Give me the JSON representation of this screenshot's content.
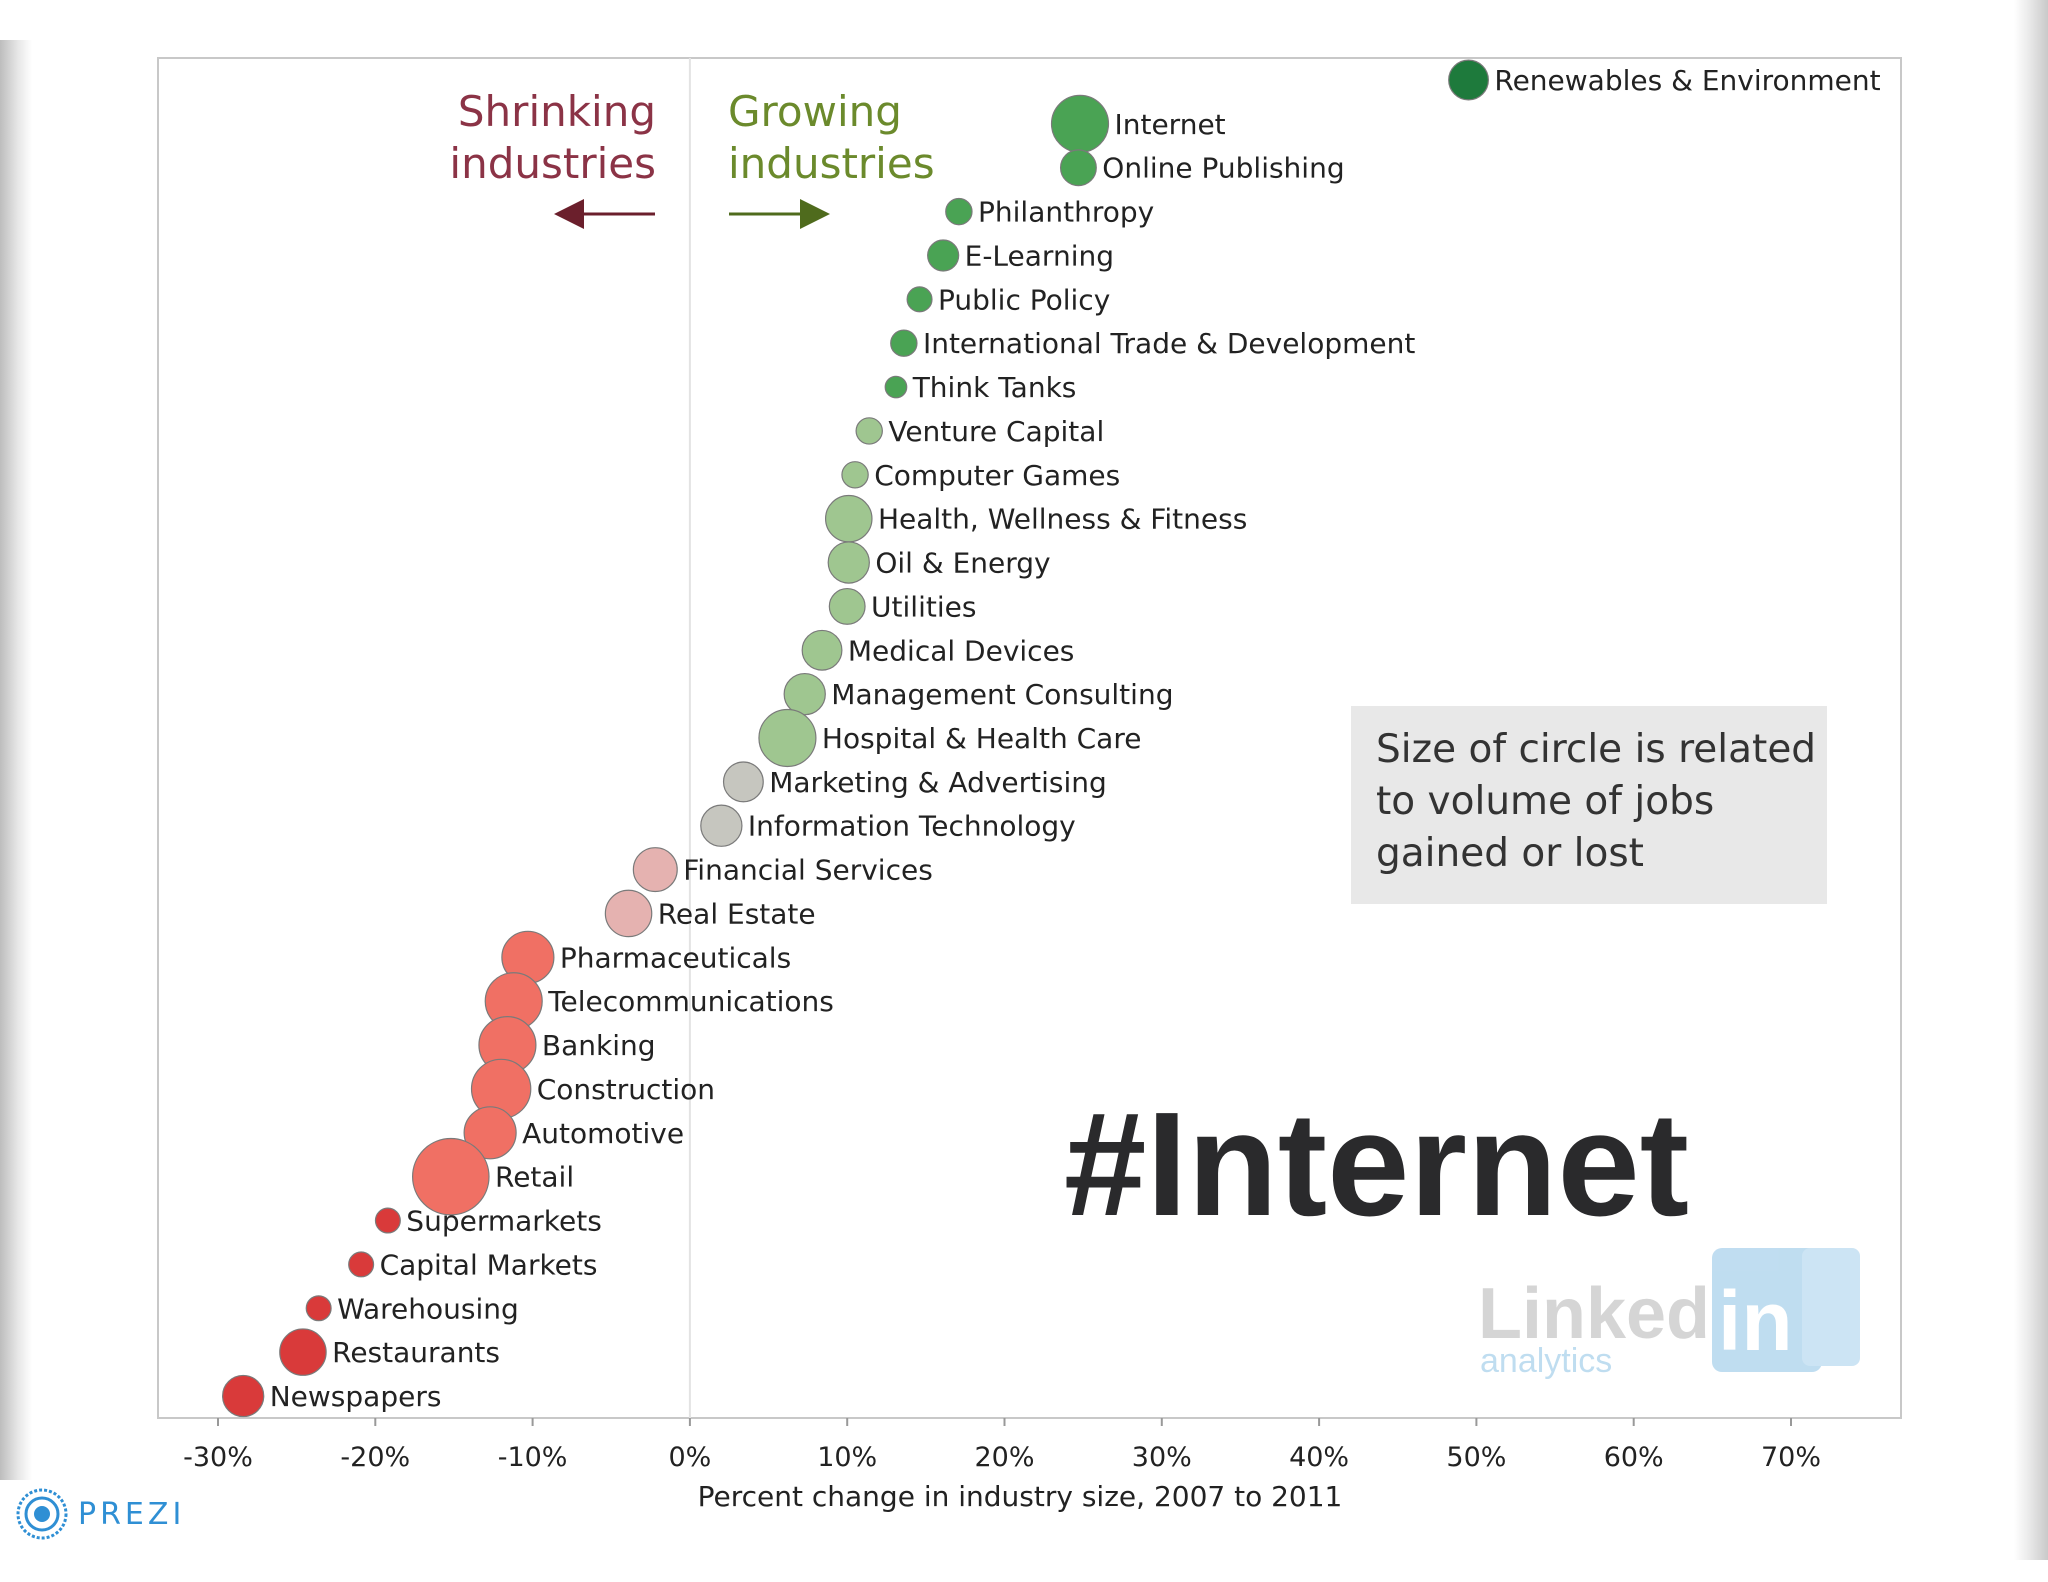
{
  "branding": {
    "prezi_label": "PREZI",
    "linkedin_word": "Linked",
    "linkedin_in": "in",
    "linkedin_sub": "analytics"
  },
  "overlay": {
    "hashtag": "#Internet"
  },
  "legend_box": {
    "lines": [
      "Size of circle is related",
      "to volume of jobs",
      "gained or lost"
    ]
  },
  "arrows": {
    "shrinking": {
      "lines": [
        "Shrinking",
        "industries"
      ],
      "color": "#8b3346"
    },
    "growing": {
      "lines": [
        "Growing",
        "industries"
      ],
      "color": "#6b8a2c"
    }
  },
  "colors": {
    "dark_green": "#1e7a3c",
    "green": "#4aa354",
    "light_green": "#9fc690",
    "grey": "#c6c6bf",
    "pink": "#e5b2b0",
    "salmon": "#f07064",
    "red": "#d93a3a"
  },
  "chart_data": {
    "type": "scatter",
    "title": "",
    "xlabel": "Percent change in industry size, 2007 to 2011",
    "ylabel": "",
    "xlim": [
      -33,
      77
    ],
    "grid": false,
    "x_ticks": [
      -30,
      -20,
      -10,
      0,
      10,
      20,
      30,
      40,
      50,
      60,
      70
    ],
    "x_tick_labels": [
      "-30%",
      "-20%",
      "-10%",
      "0%",
      "10%",
      "20%",
      "30%",
      "40%",
      "50%",
      "60%",
      "70%"
    ],
    "size_encoding": "Size of circle is related to volume of jobs gained or lost",
    "points": [
      {
        "label": "Renewables & Environment",
        "x": 49.5,
        "rank": 1,
        "size": 2,
        "color": "dark_green"
      },
      {
        "label": "Internet",
        "x": 24.8,
        "rank": 2,
        "size": 5,
        "color": "green"
      },
      {
        "label": "Online Publishing",
        "x": 24.7,
        "rank": 3,
        "size": 1.5,
        "color": "green"
      },
      {
        "label": "Philanthropy",
        "x": 17.1,
        "rank": 4,
        "size": 0.6,
        "color": "green"
      },
      {
        "label": "E-Learning",
        "x": 16.1,
        "rank": 5,
        "size": 1,
        "color": "green"
      },
      {
        "label": "Public Policy",
        "x": 14.6,
        "rank": 6,
        "size": 0.5,
        "color": "green"
      },
      {
        "label": "International Trade & Development",
        "x": 13.6,
        "rank": 7,
        "size": 0.6,
        "color": "green"
      },
      {
        "label": "Think Tanks",
        "x": 13.1,
        "rank": 8,
        "size": 0.3,
        "color": "green"
      },
      {
        "label": "Venture Capital",
        "x": 11.4,
        "rank": 9,
        "size": 0.6,
        "color": "light_green"
      },
      {
        "label": "Computer Games",
        "x": 10.5,
        "rank": 10,
        "size": 0.6,
        "color": "light_green"
      },
      {
        "label": "Health, Wellness & Fitness",
        "x": 10.1,
        "rank": 11,
        "size": 3,
        "color": "light_green"
      },
      {
        "label": "Oil & Energy",
        "x": 10.1,
        "rank": 12,
        "size": 2.2,
        "color": "light_green"
      },
      {
        "label": "Utilities",
        "x": 10.0,
        "rank": 13,
        "size": 1.5,
        "color": "light_green"
      },
      {
        "label": "Medical Devices",
        "x": 8.4,
        "rank": 14,
        "size": 2,
        "color": "light_green"
      },
      {
        "label": "Management Consulting",
        "x": 7.3,
        "rank": 15,
        "size": 2.2,
        "color": "light_green"
      },
      {
        "label": "Hospital & Health Care",
        "x": 6.2,
        "rank": 16,
        "size": 5,
        "color": "light_green"
      },
      {
        "label": "Marketing & Advertising",
        "x": 3.4,
        "rank": 17,
        "size": 2,
        "color": "grey"
      },
      {
        "label": "Information Technology",
        "x": 2.0,
        "rank": 18,
        "size": 2.2,
        "color": "grey"
      },
      {
        "label": "Financial Services",
        "x": -2.2,
        "rank": 19,
        "size": 2.6,
        "color": "pink"
      },
      {
        "label": "Real Estate",
        "x": -3.9,
        "rank": 20,
        "size": 3,
        "color": "pink"
      },
      {
        "label": "Pharmaceuticals",
        "x": -10.3,
        "rank": 21,
        "size": 4,
        "color": "salmon"
      },
      {
        "label": "Telecommunications",
        "x": -11.2,
        "rank": 22,
        "size": 5,
        "color": "salmon"
      },
      {
        "label": "Banking",
        "x": -11.6,
        "rank": 23,
        "size": 5,
        "color": "salmon"
      },
      {
        "label": "Construction",
        "x": -12.0,
        "rank": 24,
        "size": 5.5,
        "color": "salmon"
      },
      {
        "label": "Automotive",
        "x": -12.7,
        "rank": 25,
        "size": 4,
        "color": "salmon"
      },
      {
        "label": "Retail",
        "x": -15.2,
        "rank": 26,
        "size": 10,
        "color": "salmon"
      },
      {
        "label": "Supermarkets",
        "x": -19.2,
        "rank": 27,
        "size": 0.5,
        "color": "red"
      },
      {
        "label": "Capital Markets",
        "x": -20.9,
        "rank": 28,
        "size": 0.5,
        "color": "red"
      },
      {
        "label": "Warehousing",
        "x": -23.6,
        "rank": 29,
        "size": 0.5,
        "color": "red"
      },
      {
        "label": "Restaurants",
        "x": -24.6,
        "rank": 30,
        "size": 3,
        "color": "red"
      },
      {
        "label": "Newspapers",
        "x": -28.4,
        "rank": 31,
        "size": 2.2,
        "color": "red"
      }
    ]
  }
}
